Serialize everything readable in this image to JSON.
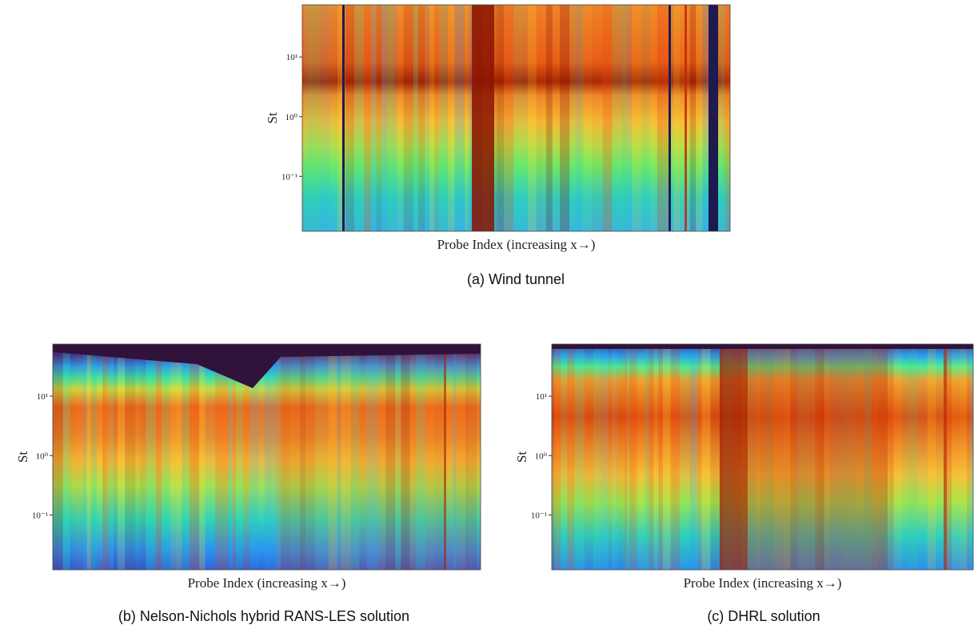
{
  "chart_data": [
    {
      "type": "heatmap",
      "ylabel": "St",
      "xlabel": "Probe Index (increasing x→)",
      "caption": "(a) Wind tunnel",
      "yscale": "log",
      "ylim": [
        0.012,
        75
      ],
      "yticks": [
        {
          "value": 0.1,
          "label": "10⁻¹"
        },
        {
          "value": 1,
          "label": "10⁰"
        },
        {
          "value": 10,
          "label": "10¹"
        }
      ]
    },
    {
      "type": "heatmap",
      "ylabel": "St",
      "xlabel": "Probe Index (increasing x→)",
      "caption": "(b) Nelson-Nichols hybrid RANS-LES solution",
      "yscale": "log",
      "ylim": [
        0.012,
        75
      ],
      "yticks": [
        {
          "value": 0.1,
          "label": "10⁻¹"
        },
        {
          "value": 1,
          "label": "10⁰"
        },
        {
          "value": 10,
          "label": "10¹"
        }
      ]
    },
    {
      "type": "heatmap",
      "ylabel": "St",
      "xlabel": "Probe Index (increasing x→)",
      "caption": "(c) DHRL solution",
      "yscale": "log",
      "ylim": [
        0.012,
        75
      ],
      "yticks": [
        {
          "value": 0.1,
          "label": "10⁻¹"
        },
        {
          "value": 1,
          "label": "10⁰"
        },
        {
          "value": 10,
          "label": "10¹"
        }
      ]
    }
  ]
}
